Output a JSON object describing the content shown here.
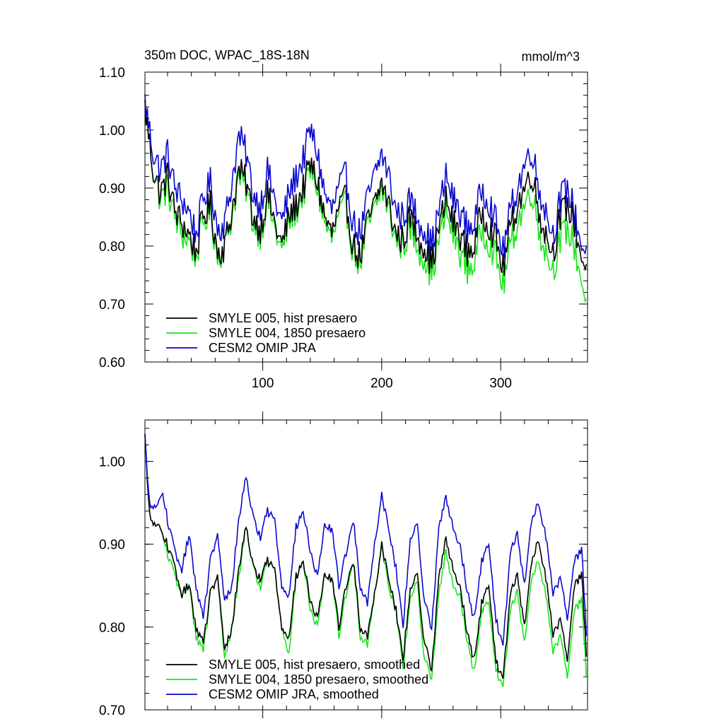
{
  "chart_data": [
    {
      "type": "line",
      "title": "350m DOC, WPAC_18S-18N",
      "units": "mmol/m^3",
      "xlim": [
        1,
        373
      ],
      "ylim": [
        0.6,
        1.1
      ],
      "yticks": [
        "0.60",
        "0.70",
        "0.80",
        "0.90",
        "1.00",
        "1.10"
      ],
      "xticks": [
        "100",
        "200",
        "300"
      ],
      "legend": {
        "placement": "bottom-left",
        "entries": [
          "SMYLE 005, hist presaero",
          "SMYLE 004, 1850 presaero",
          "CESM2 OMIP JRA"
        ]
      },
      "colors": [
        "#000000",
        "#19e619",
        "#0a0acd"
      ],
      "series_description": "monthly values, months 1-372",
      "keypoints": {
        "x": [
          1,
          8,
          14,
          20,
          26,
          32,
          38,
          44,
          50,
          56,
          62,
          68,
          74,
          80,
          86,
          92,
          98,
          104,
          110,
          116,
          122,
          128,
          134,
          140,
          146,
          152,
          158,
          164,
          170,
          176,
          182,
          188,
          194,
          200,
          206,
          212,
          218,
          224,
          230,
          236,
          242,
          248,
          254,
          260,
          266,
          272,
          278,
          284,
          290,
          296,
          302,
          308,
          314,
          320,
          326,
          332,
          338,
          344,
          350,
          356,
          362,
          368,
          372
        ],
        "series": [
          {
            "name": "SMYLE 005, hist presaero",
            "values": [
              1.04,
              0.93,
              0.89,
              0.92,
              0.86,
              0.84,
              0.82,
              0.79,
              0.85,
              0.87,
              0.79,
              0.8,
              0.86,
              0.93,
              0.91,
              0.85,
              0.83,
              0.89,
              0.84,
              0.8,
              0.85,
              0.87,
              0.9,
              0.94,
              0.91,
              0.85,
              0.82,
              0.86,
              0.88,
              0.8,
              0.78,
              0.84,
              0.87,
              0.91,
              0.87,
              0.82,
              0.81,
              0.85,
              0.82,
              0.8,
              0.77,
              0.83,
              0.88,
              0.84,
              0.82,
              0.79,
              0.8,
              0.86,
              0.84,
              0.81,
              0.76,
              0.83,
              0.87,
              0.9,
              0.93,
              0.86,
              0.82,
              0.79,
              0.85,
              0.87,
              0.84,
              0.78,
              0.76
            ]
          },
          {
            "name": "SMYLE 004, 1850 presaero",
            "values": [
              1.04,
              0.93,
              0.88,
              0.9,
              0.85,
              0.82,
              0.81,
              0.78,
              0.84,
              0.86,
              0.78,
              0.8,
              0.85,
              0.92,
              0.9,
              0.84,
              0.82,
              0.88,
              0.83,
              0.79,
              0.84,
              0.86,
              0.89,
              0.93,
              0.9,
              0.84,
              0.81,
              0.85,
              0.87,
              0.79,
              0.77,
              0.83,
              0.86,
              0.9,
              0.86,
              0.81,
              0.8,
              0.83,
              0.8,
              0.78,
              0.75,
              0.81,
              0.86,
              0.82,
              0.79,
              0.76,
              0.77,
              0.83,
              0.81,
              0.78,
              0.73,
              0.8,
              0.84,
              0.87,
              0.9,
              0.83,
              0.79,
              0.76,
              0.81,
              0.83,
              0.8,
              0.74,
              0.7
            ]
          },
          {
            "name": "CESM2 OMIP JRA",
            "values": [
              1.05,
              0.96,
              0.93,
              0.96,
              0.9,
              0.88,
              0.86,
              0.82,
              0.88,
              0.91,
              0.83,
              0.84,
              0.91,
              0.99,
              0.96,
              0.89,
              0.87,
              0.93,
              0.88,
              0.84,
              0.89,
              0.92,
              0.95,
              1.0,
              0.96,
              0.89,
              0.86,
              0.9,
              0.92,
              0.84,
              0.82,
              0.88,
              0.92,
              0.96,
              0.92,
              0.86,
              0.85,
              0.88,
              0.85,
              0.83,
              0.8,
              0.86,
              0.92,
              0.88,
              0.86,
              0.83,
              0.84,
              0.9,
              0.88,
              0.84,
              0.79,
              0.86,
              0.9,
              0.94,
              0.97,
              0.9,
              0.86,
              0.82,
              0.88,
              0.9,
              0.86,
              0.8,
              0.79
            ]
          }
        ]
      }
    },
    {
      "type": "line",
      "title": "",
      "xlim": [
        1,
        373
      ],
      "ylim": [
        0.7,
        1.05
      ],
      "yticks": [
        "0.70",
        "0.80",
        "0.90",
        "1.00"
      ],
      "xticks": [],
      "legend": {
        "placement": "bottom-left",
        "entries": [
          "SMYLE 005, hist presaero, smoothed",
          "SMYLE 004, 1850 presaero, smoothed",
          "CESM2 OMIP JRA, smoothed"
        ]
      },
      "colors": [
        "#000000",
        "#19e619",
        "#0a0acd"
      ],
      "keypoints": {
        "x": [
          1,
          4,
          8,
          12,
          16,
          20,
          26,
          32,
          38,
          44,
          50,
          56,
          62,
          68,
          74,
          80,
          86,
          92,
          98,
          104,
          110,
          116,
          122,
          128,
          134,
          140,
          146,
          152,
          158,
          164,
          170,
          176,
          182,
          188,
          194,
          200,
          206,
          212,
          218,
          224,
          230,
          236,
          242,
          248,
          254,
          260,
          266,
          272,
          278,
          284,
          290,
          296,
          302,
          308,
          314,
          320,
          326,
          332,
          338,
          344,
          350,
          356,
          362,
          368,
          372
        ],
        "series": [
          {
            "name": "SMYLE 005, hist presaero, smoothed",
            "values": [
              1.03,
              0.95,
              0.92,
              0.925,
              0.91,
              0.9,
              0.87,
              0.84,
              0.85,
              0.8,
              0.78,
              0.84,
              0.86,
              0.77,
              0.8,
              0.87,
              0.925,
              0.87,
              0.86,
              0.88,
              0.87,
              0.8,
              0.79,
              0.86,
              0.88,
              0.83,
              0.81,
              0.86,
              0.86,
              0.8,
              0.85,
              0.88,
              0.8,
              0.79,
              0.84,
              0.9,
              0.86,
              0.82,
              0.76,
              0.85,
              0.86,
              0.78,
              0.75,
              0.86,
              0.905,
              0.87,
              0.85,
              0.79,
              0.76,
              0.83,
              0.85,
              0.76,
              0.735,
              0.84,
              0.86,
              0.8,
              0.88,
              0.905,
              0.86,
              0.79,
              0.81,
              0.76,
              0.85,
              0.865,
              0.77
            ]
          },
          {
            "name": "SMYLE 004, 1850 presaero, smoothed",
            "values": [
              1.03,
              0.95,
              0.92,
              0.925,
              0.91,
              0.89,
              0.86,
              0.84,
              0.85,
              0.79,
              0.77,
              0.84,
              0.86,
              0.76,
              0.8,
              0.86,
              0.925,
              0.87,
              0.85,
              0.88,
              0.87,
              0.8,
              0.77,
              0.86,
              0.88,
              0.82,
              0.8,
              0.86,
              0.86,
              0.79,
              0.84,
              0.88,
              0.79,
              0.78,
              0.84,
              0.9,
              0.85,
              0.82,
              0.75,
              0.84,
              0.85,
              0.76,
              0.74,
              0.84,
              0.89,
              0.85,
              0.84,
              0.78,
              0.745,
              0.82,
              0.83,
              0.75,
              0.725,
              0.82,
              0.84,
              0.78,
              0.86,
              0.88,
              0.84,
              0.77,
              0.79,
              0.74,
              0.82,
              0.835,
              0.745
            ]
          },
          {
            "name": "CESM2 OMIP JRA, smoothed",
            "values": [
              1.03,
              0.96,
              0.94,
              0.95,
              0.96,
              0.93,
              0.89,
              0.87,
              0.91,
              0.85,
              0.81,
              0.88,
              0.91,
              0.83,
              0.85,
              0.93,
              0.985,
              0.93,
              0.91,
              0.94,
              0.93,
              0.85,
              0.84,
              0.92,
              0.94,
              0.89,
              0.86,
              0.92,
              0.92,
              0.85,
              0.89,
              0.93,
              0.85,
              0.83,
              0.9,
              0.96,
              0.92,
              0.87,
              0.8,
              0.91,
              0.92,
              0.83,
              0.8,
              0.92,
              0.955,
              0.92,
              0.9,
              0.84,
              0.81,
              0.88,
              0.9,
              0.81,
              0.775,
              0.89,
              0.91,
              0.85,
              0.93,
              0.95,
              0.91,
              0.84,
              0.86,
              0.81,
              0.88,
              0.895,
              0.795
            ]
          }
        ]
      }
    }
  ]
}
